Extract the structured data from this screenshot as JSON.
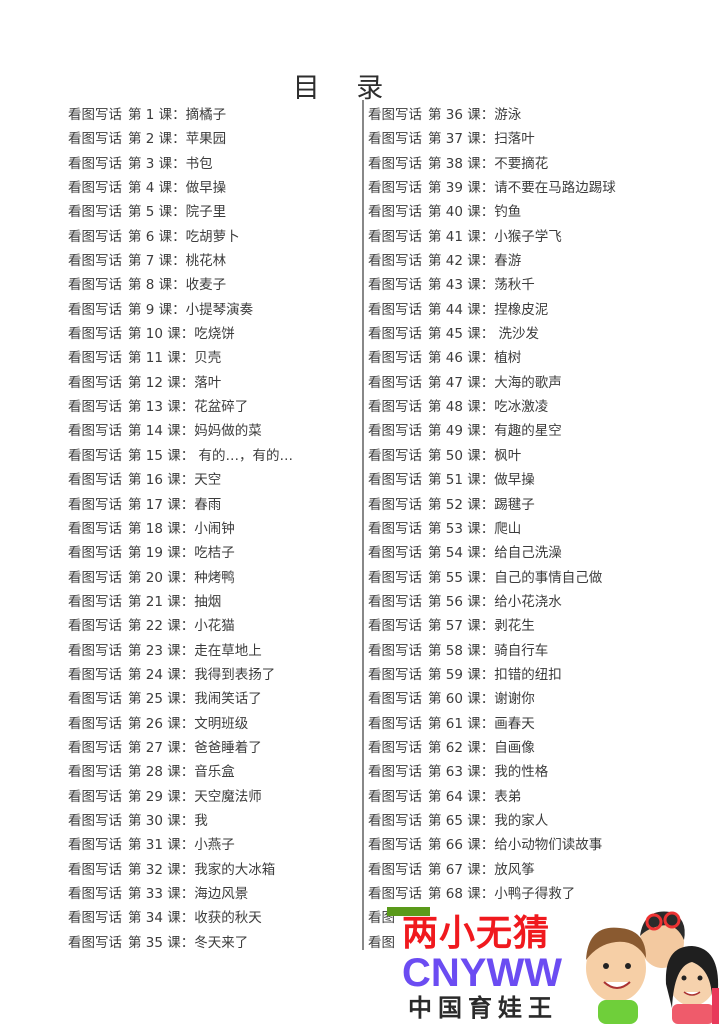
{
  "title": "目 录",
  "prefix": "看图写话",
  "left_items": [
    {
      "num": "第 1 课：",
      "name": "摘橘子"
    },
    {
      "num": "第 2 课：",
      "name": "苹果园"
    },
    {
      "num": "第 3 课：",
      "name": "书包"
    },
    {
      "num": "第 4 课：",
      "name": "做早操"
    },
    {
      "num": "第 5 课：",
      "name": "院子里"
    },
    {
      "num": "第 6 课：",
      "name": "吃胡萝卜"
    },
    {
      "num": "第 7 课：",
      "name": "桃花林"
    },
    {
      "num": "第 8 课：",
      "name": "收麦子"
    },
    {
      "num": "第 9 课：",
      "name": "小提琴演奏"
    },
    {
      "num": "第 10 课：",
      "name": "吃烧饼"
    },
    {
      "num": "第 11 课：",
      "name": "贝壳"
    },
    {
      "num": "第 12 课：",
      "name": "落叶"
    },
    {
      "num": "第 13 课：",
      "name": "花盆碎了"
    },
    {
      "num": "第 14 课：",
      "name": "妈妈做的菜"
    },
    {
      "num": "第 15 课：",
      "name": " 有的…，有的…"
    },
    {
      "num": "第 16 课：",
      "name": "天空"
    },
    {
      "num": "第 17 课：",
      "name": "春雨"
    },
    {
      "num": "第 18 课：",
      "name": "小闹钟"
    },
    {
      "num": "第 19 课：",
      "name": "吃桔子"
    },
    {
      "num": "第 20 课：",
      "name": "种烤鸭"
    },
    {
      "num": "第 21 课：",
      "name": "抽烟"
    },
    {
      "num": "第 22 课：",
      "name": "小花猫"
    },
    {
      "num": "第 23 课：",
      "name": "走在草地上"
    },
    {
      "num": "第 24 课：",
      "name": "我得到表扬了"
    },
    {
      "num": "第 25 课：",
      "name": "我闹笑话了"
    },
    {
      "num": "第 26 课：",
      "name": "文明班级"
    },
    {
      "num": "第 27 课：",
      "name": "爸爸睡着了"
    },
    {
      "num": "第 28 课：",
      "name": "音乐盒"
    },
    {
      "num": "第 29 课：",
      "name": "天空魔法师"
    },
    {
      "num": "第 30 课：",
      "name": "我"
    },
    {
      "num": "第 31 课：",
      "name": "小燕子"
    },
    {
      "num": "第 32 课：",
      "name": "我家的大冰箱"
    },
    {
      "num": "第 33 课：",
      "name": "海边风景"
    },
    {
      "num": "第 34 课：",
      "name": "收获的秋天"
    },
    {
      "num": "第 35 课：",
      "name": "冬天来了"
    }
  ],
  "right_items": [
    {
      "num": "第 36 课：",
      "name": "游泳"
    },
    {
      "num": "第 37 课：",
      "name": "扫落叶"
    },
    {
      "num": "第 38 课：",
      "name": "不要摘花"
    },
    {
      "num": "第 39 课：",
      "name": "请不要在马路边踢球"
    },
    {
      "num": "第 40 课：",
      "name": "钓鱼"
    },
    {
      "num": "第 41 课：",
      "name": "小猴子学飞"
    },
    {
      "num": "第 42 课：",
      "name": "春游"
    },
    {
      "num": "第 43 课：",
      "name": "荡秋千"
    },
    {
      "num": "第 44 课：",
      "name": "捏橡皮泥"
    },
    {
      "num": "第 45 课：",
      "name": " 洗沙发"
    },
    {
      "num": "第 46 课：",
      "name": "植树"
    },
    {
      "num": "第 47 课：",
      "name": "大海的歌声"
    },
    {
      "num": "第 48 课：",
      "name": "吃冰激凌"
    },
    {
      "num": "第 49 课：",
      "name": "有趣的星空"
    },
    {
      "num": "第 50 课：",
      "name": "枫叶"
    },
    {
      "num": "第 51 课：",
      "name": "做早操"
    },
    {
      "num": "第 52 课：",
      "name": "踢毽子"
    },
    {
      "num": "第 53 课：",
      "name": "爬山"
    },
    {
      "num": "第 54 课：",
      "name": "给自己洗澡"
    },
    {
      "num": "第 55 课：",
      "name": "自己的事情自己做"
    },
    {
      "num": "第 56 课：",
      "name": "给小花浇水"
    },
    {
      "num": "第 57 课：",
      "name": "剥花生"
    },
    {
      "num": "第 58 课：",
      "name": "骑自行车"
    },
    {
      "num": "第 59 课：",
      "name": "扣错的纽扣"
    },
    {
      "num": "第 60 课：",
      "name": "谢谢你"
    },
    {
      "num": "第 61 课：",
      "name": "画春天"
    },
    {
      "num": "第 62 课：",
      "name": "自画像"
    },
    {
      "num": "第 63 课：",
      "name": "我的性格"
    },
    {
      "num": "第 64 课：",
      "name": "表弟"
    },
    {
      "num": "第 65 课：",
      "name": "我的家人"
    },
    {
      "num": "第 66 课：",
      "name": "给小动物们读故事"
    },
    {
      "num": "第 67 课：",
      "name": "放风筝"
    },
    {
      "num": "第 68 课：",
      "name": "小鸭子得救了"
    }
  ],
  "right_partial_rows": [
    "看图",
    "看图"
  ],
  "watermark": {
    "line1": "两小无猜",
    "line2": "CNYWW",
    "line3": "中国育娃王",
    "colors": {
      "red": "#f0191e",
      "purple": "#6b4cf2",
      "green": "#5a9a1a",
      "pink": "#e8395a"
    }
  }
}
